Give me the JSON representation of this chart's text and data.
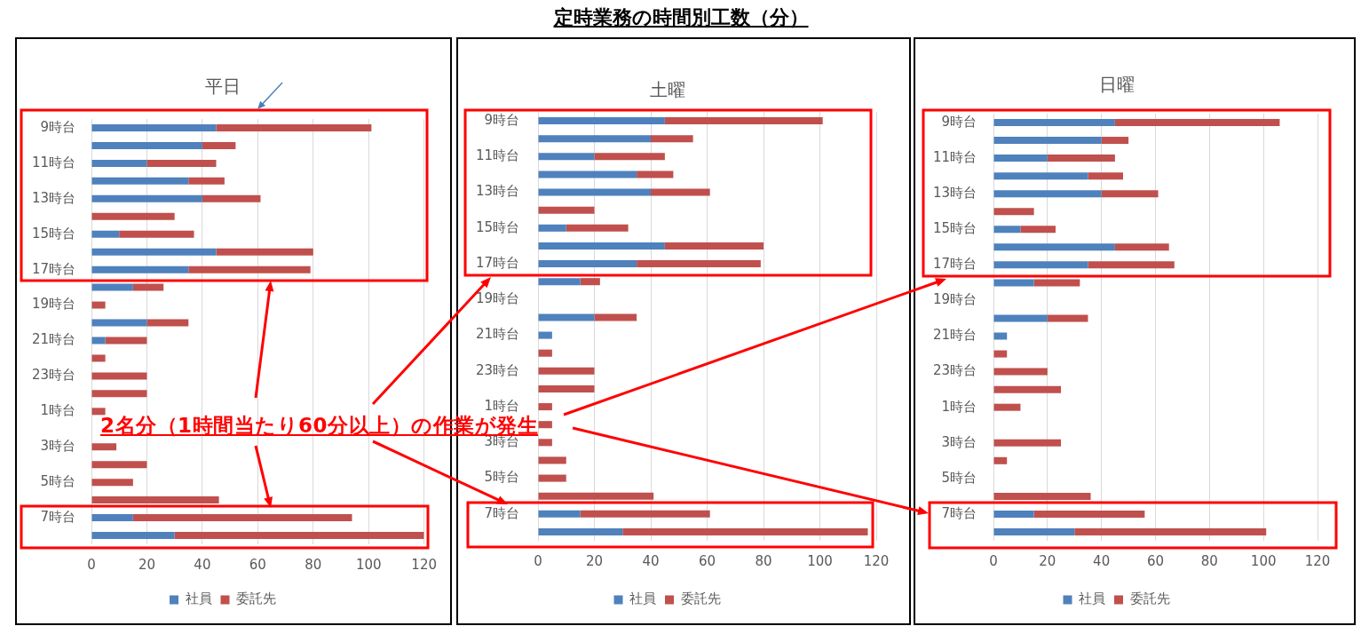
{
  "chart_data": [
    {
      "type": "other",
      "title": "定時業務の時間別工数（分）",
      "annotations": [
        "2名分（1時間当たり60分以上）の作業が発生"
      ]
    },
    {
      "type": "bar",
      "orientation": "horizontal",
      "stacked": true,
      "title": "平日",
      "categories": [
        "9時台",
        null,
        "11時台",
        null,
        "13時台",
        null,
        "15時台",
        null,
        "17時台",
        null,
        "19時台",
        null,
        "21時台",
        null,
        "23時台",
        null,
        "1時台",
        null,
        "3時台",
        null,
        "5時台",
        null,
        "7時台",
        null
      ],
      "series": [
        {
          "name": "社員",
          "color": "#4f81bd",
          "values": [
            45,
            40,
            20,
            35,
            40,
            null,
            10,
            45,
            35,
            15,
            null,
            20,
            5,
            null,
            null,
            null,
            null,
            null,
            null,
            null,
            null,
            null,
            15,
            30
          ]
        },
        {
          "name": "委託先",
          "color": "#c0504d",
          "values": [
            56,
            12,
            25,
            13,
            21,
            30,
            27,
            35,
            44,
            11,
            5,
            15,
            15,
            5,
            20,
            20,
            5,
            null,
            9,
            20,
            15,
            46,
            79,
            90
          ]
        }
      ],
      "xlim": [
        0,
        120
      ],
      "xticks": [
        0,
        20,
        40,
        60,
        80,
        100,
        120
      ],
      "grid": "x",
      "legend": "bottom"
    },
    {
      "type": "bar",
      "orientation": "horizontal",
      "stacked": true,
      "title": "土曜",
      "categories": [
        "9時台",
        null,
        "11時台",
        null,
        "13時台",
        null,
        "15時台",
        null,
        "17時台",
        null,
        "19時台",
        null,
        "21時台",
        null,
        "23時台",
        null,
        "1時台",
        null,
        "3時台",
        null,
        "5時台",
        null,
        "7時台",
        null
      ],
      "series": [
        {
          "name": "社員",
          "color": "#4f81bd",
          "values": [
            45,
            40,
            20,
            35,
            40,
            null,
            10,
            45,
            35,
            15,
            null,
            20,
            5,
            null,
            null,
            null,
            null,
            null,
            null,
            null,
            null,
            null,
            15,
            30
          ]
        },
        {
          "name": "委託先",
          "color": "#c0504d",
          "values": [
            56,
            15,
            25,
            13,
            21,
            20,
            22,
            35,
            44,
            7,
            null,
            15,
            null,
            5,
            20,
            20,
            5,
            5,
            5,
            10,
            10,
            41,
            46,
            87
          ]
        }
      ],
      "xlim": [
        0,
        120
      ],
      "xticks": [
        0,
        20,
        40,
        60,
        80,
        100,
        120
      ],
      "grid": "x",
      "legend": "bottom"
    },
    {
      "type": "bar",
      "orientation": "horizontal",
      "stacked": true,
      "title": "日曜",
      "categories": [
        "9時台",
        null,
        "11時台",
        null,
        "13時台",
        null,
        "15時台",
        null,
        "17時台",
        null,
        "19時台",
        null,
        "21時台",
        null,
        "23時台",
        null,
        "1時台",
        null,
        "3時台",
        null,
        "5時台",
        null,
        "7時台",
        null
      ],
      "series": [
        {
          "name": "社員",
          "color": "#4f81bd",
          "values": [
            45,
            40,
            20,
            35,
            40,
            null,
            10,
            45,
            35,
            15,
            null,
            20,
            5,
            null,
            null,
            null,
            null,
            null,
            null,
            null,
            null,
            null,
            15,
            30
          ]
        },
        {
          "name": "委託先",
          "color": "#c0504d",
          "values": [
            61,
            10,
            25,
            13,
            21,
            15,
            13,
            20,
            32,
            17,
            null,
            15,
            null,
            5,
            20,
            25,
            10,
            null,
            25,
            5,
            null,
            36,
            41,
            71
          ]
        }
      ],
      "xlim": [
        0,
        120
      ],
      "xticks": [
        0,
        20,
        40,
        60,
        80,
        100,
        120
      ],
      "grid": "x",
      "legend": "bottom"
    }
  ]
}
